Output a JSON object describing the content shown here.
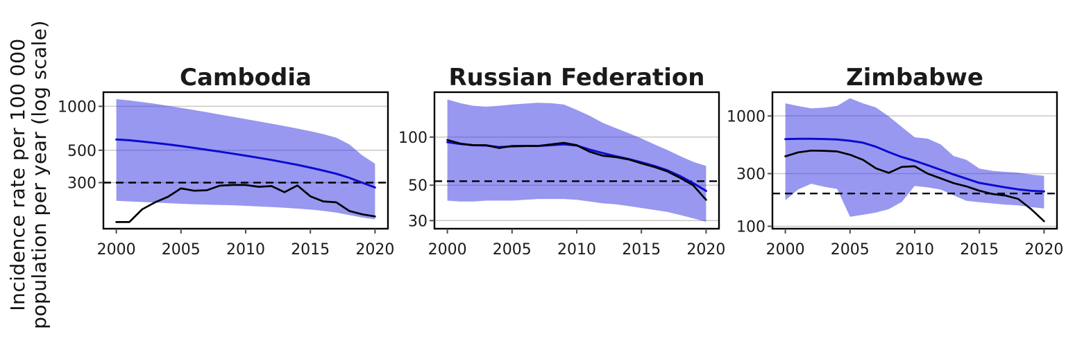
{
  "figure": {
    "y_axis_title_line1": "Incidence rate per 100 000",
    "y_axis_title_line2": "population per year (log scale)"
  },
  "colors": {
    "ribbon": "rgba(50,50,225,0.5)",
    "estimate_line": "#0b0bd1",
    "notifications_line": "#000000",
    "reference_line": "#000000",
    "grid_line": "#c9c9c9",
    "panel_border": "#000000",
    "tick_mark": "#4d4d4d",
    "text": "#1a1a1a"
  },
  "chart_data": [
    {
      "type": "line",
      "title": "Cambodia",
      "scale": "log10",
      "grid": "horizontal-major-only",
      "x": [
        2000,
        2001,
        2002,
        2003,
        2004,
        2005,
        2006,
        2007,
        2008,
        2009,
        2010,
        2011,
        2012,
        2013,
        2014,
        2015,
        2016,
        2017,
        2018,
        2019,
        2020
      ],
      "xticks": [
        2000,
        2005,
        2010,
        2015,
        2020
      ],
      "xlim": [
        1999,
        2021
      ],
      "yticks": [
        1000,
        500,
        300
      ],
      "ylim": [
        145,
        1250
      ],
      "reference_line_value": 300,
      "series": [
        {
          "name": "estimated-incidence",
          "style": "solid-blue",
          "values": [
            593,
            585,
            574,
            561,
            548,
            534,
            519,
            504,
            489,
            474,
            459,
            444,
            429,
            413,
            397,
            380,
            363,
            345,
            324,
            300,
            278
          ]
        },
        {
          "name": "notifications",
          "style": "solid-black",
          "values": [
            161,
            161,
            197,
            220,
            240,
            274,
            264,
            266,
            286,
            289,
            289,
            281,
            284,
            258,
            287,
            242,
            223,
            220,
            192,
            182,
            176
          ]
        }
      ],
      "ribbon": {
        "name": "uncertainty-interval",
        "hi": [
          1120,
          1098,
          1070,
          1040,
          1008,
          976,
          944,
          911,
          879,
          848,
          818,
          789,
          760,
          732,
          704,
          676,
          645,
          610,
          550,
          462,
          404
        ],
        "lo": [
          225,
          223,
          221,
          219,
          217,
          215,
          213,
          212,
          211,
          210,
          208,
          206,
          204,
          202,
          199,
          196,
          192,
          187,
          180,
          173,
          168
        ]
      }
    },
    {
      "type": "line",
      "title": "Russian Federation",
      "scale": "log10",
      "grid": "horizontal-major-only",
      "x": [
        2000,
        2001,
        2002,
        2003,
        2004,
        2005,
        2006,
        2007,
        2008,
        2009,
        2010,
        2011,
        2012,
        2013,
        2014,
        2015,
        2016,
        2017,
        2018,
        2019,
        2020
      ],
      "xticks": [
        2000,
        2005,
        2010,
        2015,
        2020
      ],
      "xlim": [
        1999,
        2021
      ],
      "yticks": [
        100,
        50,
        30
      ],
      "ylim": [
        26.7,
        191
      ],
      "reference_line_value": 53,
      "series": [
        {
          "name": "estimated-incidence",
          "style": "solid-blue",
          "values": [
            93,
            90.5,
            89,
            88.5,
            86.5,
            87.5,
            88,
            88,
            89,
            90,
            88.5,
            83.5,
            79.5,
            76,
            73,
            69.5,
            66,
            62,
            57,
            51.5,
            46
          ]
        },
        {
          "name": "notifications",
          "style": "solid-black",
          "values": [
            96,
            91,
            89,
            89,
            85.5,
            88,
            88,
            88,
            90,
            92,
            89,
            81,
            76.5,
            75,
            72.5,
            68.5,
            65,
            61,
            55.5,
            50,
            40.5
          ]
        }
      ],
      "ribbon": {
        "name": "uncertainty-interval",
        "hi": [
          172,
          163,
          157,
          155,
          157,
          160,
          162,
          164,
          163,
          160,
          148,
          136,
          123,
          114,
          106,
          98,
          90,
          83,
          76,
          70,
          66
        ],
        "lo": [
          40,
          39.5,
          39.5,
          40,
          40,
          40,
          40.5,
          41,
          41,
          41,
          40.5,
          39.5,
          38.5,
          38,
          37,
          36,
          35,
          34,
          32.5,
          31,
          29.5
        ]
      }
    },
    {
      "type": "line",
      "title": "Zimbabwe",
      "scale": "log10",
      "grid": "horizontal-major-only",
      "x": [
        2000,
        2001,
        2002,
        2003,
        2004,
        2005,
        2006,
        2007,
        2008,
        2009,
        2010,
        2011,
        2012,
        2013,
        2014,
        2015,
        2016,
        2017,
        2018,
        2019,
        2020
      ],
      "xticks": [
        2000,
        2005,
        2010,
        2015,
        2020
      ],
      "xlim": [
        1999,
        2021
      ],
      "yticks": [
        1000,
        300,
        100
      ],
      "ylim": [
        95,
        1642
      ],
      "reference_line_value": 198,
      "series": [
        {
          "name": "estimated-incidence",
          "style": "solid-blue",
          "values": [
            617,
            620,
            621,
            618,
            611,
            596,
            572,
            526,
            470,
            424,
            392,
            358,
            325,
            295,
            270,
            247,
            236,
            225,
            216,
            210,
            207
          ]
        },
        {
          "name": "notifications",
          "style": "solid-black",
          "values": [
            430,
            468,
            485,
            483,
            477,
            445,
            400,
            335,
            305,
            345,
            350,
            300,
            272,
            246,
            230,
            210,
            196,
            190,
            177,
            143,
            111
          ]
        }
      ],
      "ribbon": {
        "name": "uncertainty-interval",
        "hi": [
          1300,
          1230,
          1170,
          1190,
          1235,
          1445,
          1300,
          1195,
          990,
          795,
          640,
          623,
          553,
          434,
          400,
          333,
          318,
          311,
          306,
          294,
          286
        ],
        "lo": [
          172,
          216,
          243,
          228,
          218,
          122,
          127,
          133,
          143,
          166,
          232,
          225,
          215,
          191,
          170,
          165,
          161,
          157,
          155,
          149,
          145
        ]
      }
    }
  ]
}
